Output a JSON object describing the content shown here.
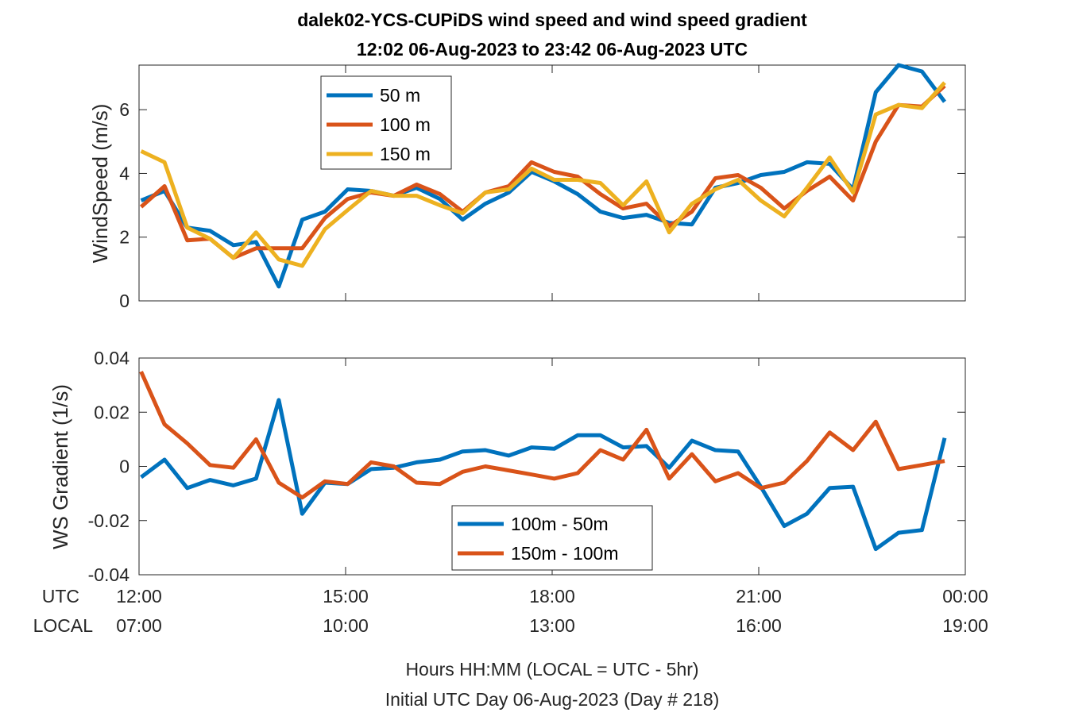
{
  "figure": {
    "title_line1": "dalek02-YCS-CUPiDS  wind speed and wind speed gradient",
    "title_line2": "12:02 06-Aug-2023 to 23:42 06-Aug-2023  UTC",
    "xlabel_line1": "Hours HH:MM  (LOCAL = UTC - 5hr)",
    "xlabel_line2": "Initial UTC Day 06-Aug-2023 (Day # 218)",
    "row_label_utc": "UTC",
    "row_label_local": "LOCAL",
    "utc_ticks": [
      "12:00",
      "15:00",
      "18:00",
      "21:00",
      "00:00"
    ],
    "local_ticks": [
      "07:00",
      "10:00",
      "13:00",
      "16:00",
      "19:00"
    ],
    "colors": {
      "blue": "#0072BD",
      "orange": "#D95319",
      "yellow": "#EDB120"
    }
  },
  "chart_data": [
    {
      "type": "line",
      "ylabel": "WindSpeed (m/s)",
      "xlim": [
        12.0,
        24.0
      ],
      "ylim": [
        0,
        7.4
      ],
      "yticks": [
        0,
        2,
        4,
        6
      ],
      "ytick_labels": [
        "0",
        "2",
        "4",
        "6"
      ],
      "x": [
        12.03,
        12.37,
        12.7,
        13.03,
        13.37,
        13.7,
        14.03,
        14.37,
        14.7,
        15.03,
        15.37,
        15.7,
        16.03,
        16.37,
        16.7,
        17.03,
        17.37,
        17.7,
        18.03,
        18.37,
        18.7,
        19.03,
        19.37,
        19.7,
        20.03,
        20.37,
        20.7,
        21.03,
        21.37,
        21.7,
        22.03,
        22.37,
        22.7,
        23.03,
        23.37,
        23.7
      ],
      "series": [
        {
          "name": "50 m",
          "color": "#0072BD",
          "values": [
            3.15,
            3.45,
            2.3,
            2.2,
            1.75,
            1.85,
            0.45,
            2.55,
            2.8,
            3.5,
            3.45,
            3.3,
            3.55,
            3.2,
            2.55,
            3.05,
            3.4,
            4.05,
            3.75,
            3.35,
            2.8,
            2.6,
            2.7,
            2.45,
            2.4,
            3.55,
            3.7,
            3.95,
            4.05,
            4.35,
            4.3,
            3.5,
            6.55,
            7.4,
            7.2,
            6.25
          ]
        },
        {
          "name": "100 m",
          "color": "#D95319",
          "values": [
            2.95,
            3.6,
            1.9,
            1.95,
            1.35,
            1.65,
            1.65,
            1.65,
            2.6,
            3.2,
            3.4,
            3.3,
            3.65,
            3.35,
            2.8,
            3.4,
            3.6,
            4.35,
            4.05,
            3.9,
            3.35,
            2.9,
            3.05,
            2.35,
            2.8,
            3.85,
            3.95,
            3.55,
            2.9,
            3.45,
            3.9,
            3.15,
            5.0,
            6.15,
            6.1,
            6.75
          ]
        },
        {
          "name": "150 m",
          "color": "#EDB120",
          "values": [
            4.7,
            4.35,
            2.3,
            1.95,
            1.35,
            2.15,
            1.3,
            1.1,
            2.25,
            2.85,
            3.45,
            3.3,
            3.3,
            3.0,
            2.75,
            3.4,
            3.5,
            4.15,
            3.8,
            3.8,
            3.7,
            3.0,
            3.75,
            2.15,
            3.05,
            3.5,
            3.8,
            3.15,
            2.65,
            3.55,
            4.5,
            3.4,
            5.85,
            6.15,
            6.05,
            6.85
          ]
        }
      ],
      "legend": {
        "position": "upper-left"
      }
    },
    {
      "type": "line",
      "ylabel": "WS Gradient (1/s)",
      "xlim": [
        12.0,
        24.0
      ],
      "ylim": [
        -0.04,
        0.04
      ],
      "yticks": [
        -0.04,
        -0.02,
        0,
        0.02,
        0.04
      ],
      "ytick_labels": [
        "-0.04",
        "-0.02",
        "0",
        "0.02",
        "0.04"
      ],
      "x": [
        12.03,
        12.37,
        12.7,
        13.03,
        13.37,
        13.7,
        14.03,
        14.37,
        14.7,
        15.03,
        15.37,
        15.7,
        16.03,
        16.37,
        16.7,
        17.03,
        17.37,
        17.7,
        18.03,
        18.37,
        18.7,
        19.03,
        19.37,
        19.7,
        20.03,
        20.37,
        20.7,
        21.03,
        21.37,
        21.7,
        22.03,
        22.37,
        22.7,
        23.03,
        23.37,
        23.7
      ],
      "series": [
        {
          "name": "100m - 50m",
          "color": "#0072BD",
          "values": [
            -0.004,
            0.0025,
            -0.008,
            -0.005,
            -0.007,
            -0.0045,
            0.0245,
            -0.0175,
            -0.006,
            -0.0065,
            -0.001,
            -0.0005,
            0.0015,
            0.0025,
            0.0055,
            0.006,
            0.004,
            0.007,
            0.0065,
            0.0115,
            0.0115,
            0.007,
            0.0075,
            -0.0005,
            0.0095,
            0.006,
            0.0055,
            -0.0075,
            -0.022,
            -0.0175,
            -0.008,
            -0.0075,
            -0.0305,
            -0.0245,
            -0.0235,
            0.0105
          ]
        },
        {
          "name": "150m - 100m",
          "color": "#D95319",
          "values": [
            0.035,
            0.0155,
            0.0085,
            0.0005,
            -0.0005,
            0.01,
            -0.006,
            -0.0115,
            -0.0055,
            -0.0065,
            0.0015,
            0.0,
            -0.006,
            -0.0065,
            -0.002,
            0.0,
            -0.0015,
            -0.003,
            -0.0045,
            -0.0025,
            0.006,
            0.0025,
            0.0135,
            -0.0045,
            0.0045,
            -0.0055,
            -0.0025,
            -0.008,
            -0.006,
            0.002,
            0.0125,
            0.006,
            0.0165,
            -0.001,
            0.0005,
            0.002
          ]
        }
      ],
      "legend": {
        "position": "bottom-center"
      }
    }
  ]
}
